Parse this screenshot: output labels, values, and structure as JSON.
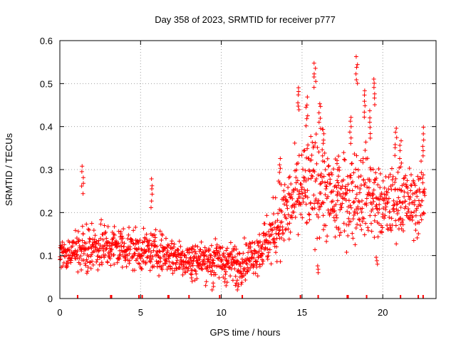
{
  "chart_data": {
    "type": "scatter",
    "title": "Day 358 of 2023, SRMTID for receiver p777",
    "xlabel": "GPS time / hours",
    "ylabel": "SRMTID / TECUs",
    "xlim": [
      0,
      23.3
    ],
    "ylim": [
      0,
      0.6
    ],
    "xticks": [
      0,
      5,
      10,
      15,
      20
    ],
    "xtick_labels": [
      "0",
      "5",
      "10",
      "15",
      "20"
    ],
    "yticks": [
      0,
      0.1,
      0.2,
      0.3,
      0.4,
      0.5,
      0.6
    ],
    "ytick_labels": [
      "0",
      "0.1",
      "0.2",
      "0.3",
      "0.4",
      "0.5",
      "0.6"
    ],
    "grid": true,
    "marker": "+",
    "color": "#ff0000",
    "envelope": {
      "description": "approximate mean and spread of SRMTID across time (hours, TECU)",
      "x": [
        0,
        1,
        2,
        3,
        4,
        5,
        6,
        7,
        8,
        9,
        10,
        11,
        12,
        13,
        14,
        15,
        16,
        17,
        18,
        19,
        20,
        21,
        22,
        22.6
      ],
      "mean": [
        0.1,
        0.11,
        0.12,
        0.12,
        0.12,
        0.11,
        0.11,
        0.1,
        0.09,
        0.09,
        0.09,
        0.08,
        0.1,
        0.14,
        0.2,
        0.25,
        0.27,
        0.22,
        0.24,
        0.25,
        0.21,
        0.23,
        0.22,
        0.24
      ],
      "spread": [
        0.03,
        0.04,
        0.05,
        0.05,
        0.05,
        0.04,
        0.04,
        0.04,
        0.04,
        0.04,
        0.04,
        0.04,
        0.04,
        0.06,
        0.08,
        0.1,
        0.11,
        0.08,
        0.1,
        0.09,
        0.07,
        0.07,
        0.07,
        0.07
      ]
    },
    "peaks": [
      {
        "x": 1.4,
        "y": 0.31
      },
      {
        "x": 5.7,
        "y": 0.28
      },
      {
        "x": 14.8,
        "y": 0.5
      },
      {
        "x": 15.3,
        "y": 0.47
      },
      {
        "x": 15.8,
        "y": 0.555
      },
      {
        "x": 16.1,
        "y": 0.46
      },
      {
        "x": 16.3,
        "y": 0.4
      },
      {
        "x": 18.0,
        "y": 0.43
      },
      {
        "x": 18.4,
        "y": 0.565
      },
      {
        "x": 18.9,
        "y": 0.49
      },
      {
        "x": 19.5,
        "y": 0.52
      },
      {
        "x": 19.2,
        "y": 0.44
      },
      {
        "x": 20.8,
        "y": 0.4
      },
      {
        "x": 21.1,
        "y": 0.37
      },
      {
        "x": 22.5,
        "y": 0.4
      },
      {
        "x": 13.6,
        "y": 0.33
      },
      {
        "x": 17.2,
        "y": 0.34
      }
    ],
    "lows": [
      {
        "x": 9.5,
        "y": 0.02
      },
      {
        "x": 10.3,
        "y": 0.03
      },
      {
        "x": 11.0,
        "y": 0.02
      },
      {
        "x": 8.2,
        "y": 0.04
      },
      {
        "x": 19.6,
        "y": 0.08
      },
      {
        "x": 16.0,
        "y": 0.06
      }
    ],
    "rug_x": [
      1.1,
      3.15,
      3.2,
      4.9,
      5.1,
      6.7,
      6.75,
      8.0,
      9.9,
      11.3,
      14.9,
      16.0,
      17.8,
      17.85,
      19.0,
      21.1,
      22.2,
      22.5
    ]
  }
}
